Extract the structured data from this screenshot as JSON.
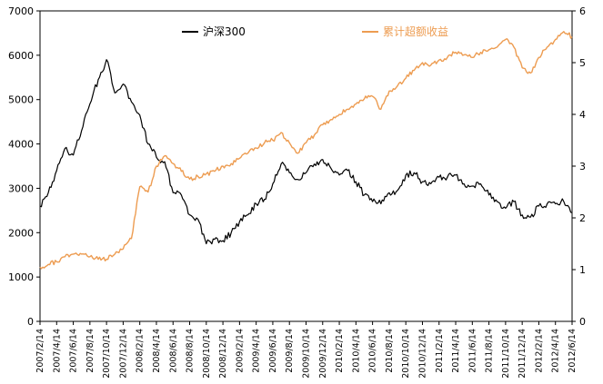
{
  "chart_data": {
    "type": "line",
    "title": "",
    "legend": [
      {
        "label": "沪深300",
        "color": "#000000"
      },
      {
        "label": "累计超额收益",
        "color": "#ED9C51"
      }
    ],
    "left_axis": {
      "min": 0,
      "max": 7000,
      "step": 1000,
      "ticks": [
        "0",
        "1000",
        "2000",
        "3000",
        "4000",
        "5000",
        "6000",
        "7000"
      ]
    },
    "right_axis": {
      "min": 0,
      "max": 6,
      "step": 1,
      "ticks": [
        "0",
        "1",
        "2",
        "3",
        "4",
        "5",
        "6"
      ]
    },
    "x_tick_labels": [
      "2007/2/14",
      "2007/4/14",
      "2007/6/14",
      "2007/8/14",
      "2007/10/14",
      "2007/12/14",
      "2008/2/14",
      "2008/4/14",
      "2008/6/14",
      "2008/8/14",
      "2008/10/14",
      "2008/12/14",
      "2009/2/14",
      "2009/4/14",
      "2009/6/14",
      "2009/8/14",
      "2009/10/14",
      "2009/12/14",
      "2010/2/14",
      "2010/4/14",
      "2010/6/14",
      "2010/8/14",
      "2010/10/14",
      "2010/12/14",
      "2011/2/14",
      "2011/4/14",
      "2011/6/14",
      "2011/8/14",
      "2011/10/14",
      "2011/12/14",
      "2012/2/14",
      "2012/4/14",
      "2012/6/14"
    ],
    "x_start": "2007/2/14",
    "x_end": "2012/6/14",
    "grid": false,
    "legend_position": "top-inside",
    "series": [
      {
        "name": "沪深300",
        "axis": "left",
        "color": "#000000",
        "values": [
          2600,
          2900,
          3400,
          3900,
          3750,
          4300,
          4900,
          5450,
          5900,
          5150,
          5350,
          4950,
          4650,
          4000,
          3700,
          3600,
          2900,
          2850,
          2400,
          2300,
          1750,
          1850,
          1820,
          2000,
          2250,
          2400,
          2650,
          2750,
          3100,
          3550,
          3350,
          3200,
          3350,
          3550,
          3650,
          3450,
          3300,
          3400,
          3150,
          2850,
          2700,
          2650,
          2900,
          2950,
          3300,
          3350,
          3150,
          3100,
          3250,
          3250,
          3300,
          3100,
          3050,
          3100,
          2850,
          2700,
          2550,
          2700,
          2400,
          2350,
          2600,
          2650,
          2650,
          2700,
          2450
        ]
      },
      {
        "name": "累计超额收益",
        "axis": "right",
        "color": "#ED9C51",
        "values": [
          1.05,
          1.1,
          1.15,
          1.25,
          1.3,
          1.3,
          1.25,
          1.2,
          1.2,
          1.3,
          1.4,
          1.6,
          2.6,
          2.5,
          3.0,
          3.2,
          3.05,
          2.9,
          2.75,
          2.8,
          2.85,
          2.9,
          3.0,
          3.05,
          3.15,
          3.25,
          3.35,
          3.45,
          3.5,
          3.65,
          3.45,
          3.25,
          3.45,
          3.6,
          3.8,
          3.9,
          4.0,
          4.1,
          4.2,
          4.3,
          4.35,
          4.1,
          4.45,
          4.55,
          4.7,
          4.85,
          5.0,
          4.95,
          5.05,
          5.1,
          5.2,
          5.15,
          5.1,
          5.2,
          5.25,
          5.3,
          5.45,
          5.3,
          4.9,
          4.8,
          5.1,
          5.3,
          5.45,
          5.6,
          5.5
        ]
      }
    ]
  }
}
